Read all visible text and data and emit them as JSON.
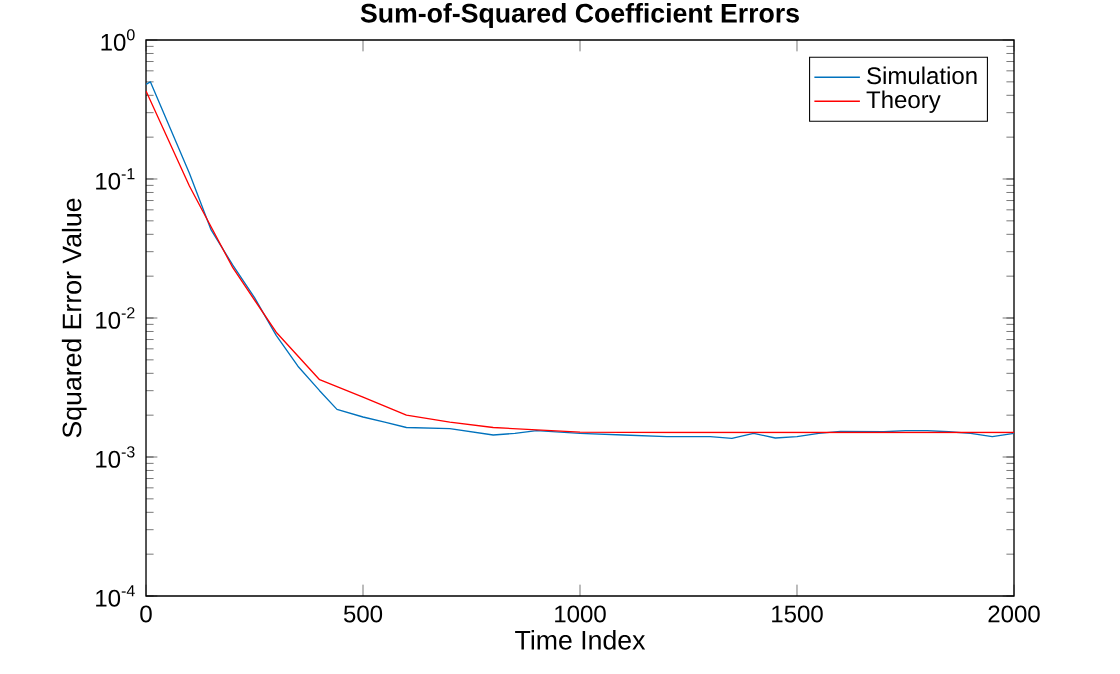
{
  "chart_data": {
    "type": "line",
    "title": "Sum-of-Squared Coefficient Errors",
    "xlabel": "Time Index",
    "ylabel": "Squared Error Value",
    "log": "y",
    "legend": "top right",
    "xlim": [
      0,
      2000
    ],
    "xticks": [
      0,
      500,
      1000,
      1500,
      2000
    ],
    "ylim": [
      0.0001,
      1
    ],
    "yticks": [
      {
        "value": 0.0001,
        "label": "10$^{-4}$"
      },
      {
        "value": 0.001,
        "label": "10$^{-3}$"
      },
      {
        "value": 0.01,
        "label": "10$^{-2}$"
      },
      {
        "value": 0.1,
        "label": "10$^{-1}$"
      },
      {
        "value": 1,
        "label": "10$^{0}$"
      }
    ],
    "series": [
      {
        "name": "Simulation",
        "color": "#0072bd",
        "x": [
          0,
          10,
          100,
          150,
          200,
          250,
          300,
          350,
          400,
          440,
          500,
          550,
          600,
          700,
          800,
          850,
          900,
          1000,
          1100,
          1200,
          1300,
          1350,
          1400,
          1450,
          1500,
          1550,
          1600,
          1700,
          1750,
          1800,
          1850,
          1900,
          1950,
          2000
        ],
        "values": [
          0.48,
          0.5,
          0.11,
          0.043,
          0.024,
          0.014,
          0.0075,
          0.0045,
          0.003,
          0.0022,
          0.00194,
          0.00178,
          0.00163,
          0.0016,
          0.00144,
          0.00148,
          0.00155,
          0.00148,
          0.00144,
          0.0014,
          0.0014,
          0.00136,
          0.00148,
          0.00137,
          0.0014,
          0.00148,
          0.00153,
          0.00152,
          0.00155,
          0.00155,
          0.00152,
          0.00148,
          0.0014,
          0.00148
        ]
      },
      {
        "name": "Theory",
        "color": "#ff0000",
        "x": [
          0,
          100,
          200,
          300,
          400,
          500,
          600,
          700,
          800,
          1000,
          1200,
          1500,
          2000
        ],
        "values": [
          0.43,
          0.089,
          0.023,
          0.0079,
          0.0036,
          0.0027,
          0.002,
          0.00178,
          0.00163,
          0.00151,
          0.0015,
          0.0015,
          0.0015
        ]
      }
    ]
  }
}
